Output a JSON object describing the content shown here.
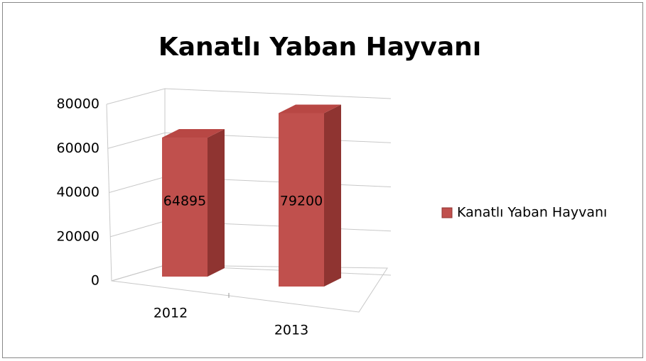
{
  "chart_data": {
    "type": "bar3d",
    "title": "Kanatlı Yaban Hayvanı",
    "categories": [
      "2012",
      "2013"
    ],
    "series": [
      {
        "name": "Kanatlı Yaban Hayvanı",
        "color": "#c0504d",
        "values": [
          64895,
          79200
        ]
      }
    ],
    "ylim": [
      0,
      80000
    ],
    "yticks": [
      0,
      20000,
      40000,
      60000,
      80000
    ],
    "grid": true,
    "legend": "right",
    "data_labels": true
  }
}
